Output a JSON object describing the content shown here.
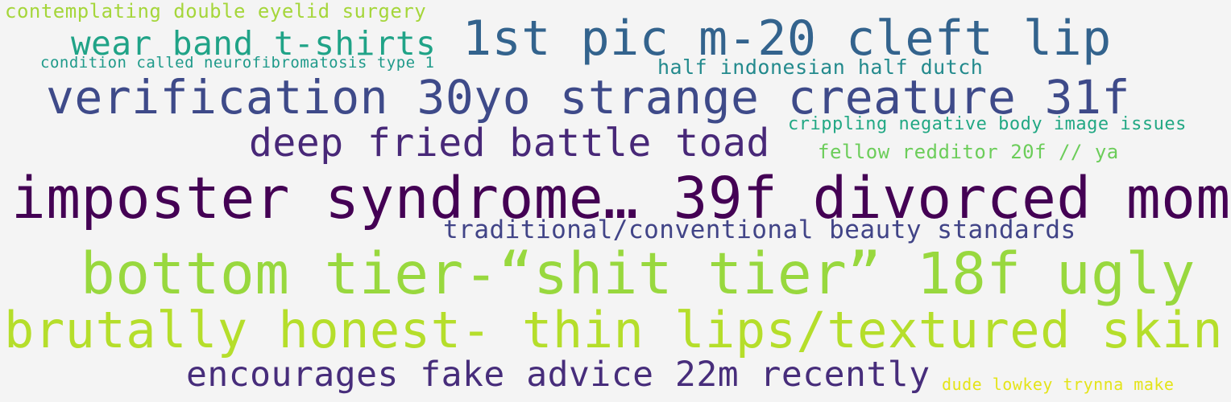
{
  "phrases": [
    {
      "text": "contemplating double eyelid surgery",
      "color": "#a5d63a"
    },
    {
      "text": "wear band t-shirts",
      "color": "#20a387"
    },
    {
      "text": "1st pic m-20 cleft lip",
      "color": "#33638d"
    },
    {
      "text": "condition called neurofibromatosis type 1",
      "color": "#1f9a8a"
    },
    {
      "text": "half indonesian half dutch",
      "color": "#238a8d"
    },
    {
      "text": "verification 30yo strange creature 31f",
      "color": "#3e4a89"
    },
    {
      "text": "deep fried battle toad",
      "color": "#482878"
    },
    {
      "text": "crippling negative body image issues",
      "color": "#22a884"
    },
    {
      "text": "fellow redditor 20f // ya",
      "color": "#6ccd5a"
    },
    {
      "text": "imposter syndrome… 39f divorced mom",
      "color": "#440154"
    },
    {
      "text": "traditional/conventional beauty standards",
      "color": "#414487"
    },
    {
      "text": "bottom tier-“shit tier” 18f ugly",
      "color": "#98d83e"
    },
    {
      "text": "brutally honest- thin lips/textured skin",
      "color": "#b5de2b"
    },
    {
      "text": "encourages fake advice 22m recently",
      "color": "#472d7b"
    },
    {
      "text": "dude lowkey trynna make",
      "color": "#e4e419"
    }
  ]
}
